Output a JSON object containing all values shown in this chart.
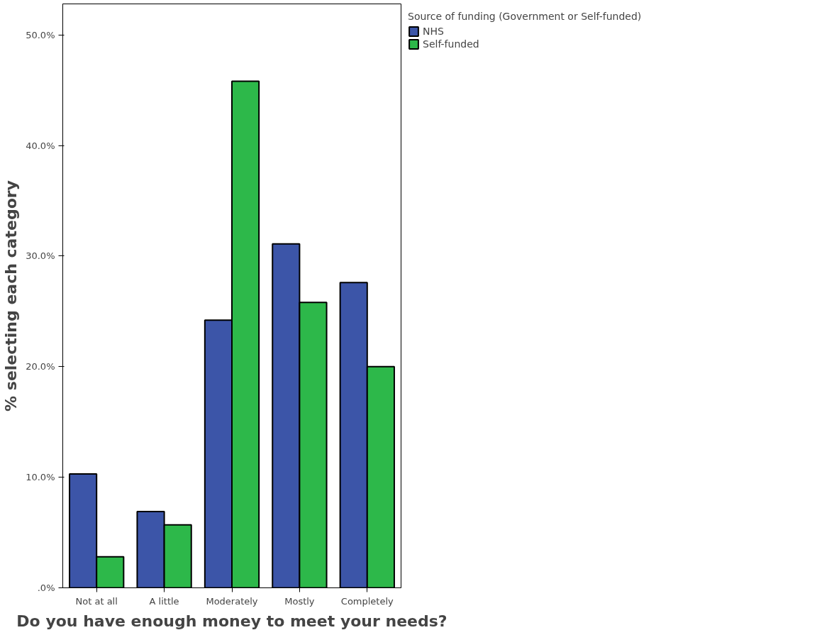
{
  "chart_data": {
    "type": "bar",
    "xlabel": "Do you have enough money to meet your needs?",
    "ylabel": "% selecting each category",
    "legend_title": "Source of funding (Government or Self-funded)",
    "categories": [
      "Not at all",
      "A little",
      "Moderately",
      "Mostly",
      "Completely"
    ],
    "series": [
      {
        "name": "NHS",
        "color": "#3c55a8",
        "values": [
          10.3,
          6.9,
          24.2,
          31.1,
          27.6
        ]
      },
      {
        "name": "Self-funded",
        "color": "#2db84a",
        "values": [
          2.8,
          5.7,
          45.8,
          25.8,
          20.0
        ]
      }
    ],
    "ylim": [
      0,
      52.8
    ],
    "yticks": [
      {
        "value": 0,
        "label": ".0%"
      },
      {
        "value": 10,
        "label": "10.0%"
      },
      {
        "value": 20,
        "label": "20.0%"
      },
      {
        "value": 30,
        "label": "30.0%"
      },
      {
        "value": 40,
        "label": "40.0%"
      },
      {
        "value": 50,
        "label": "50.0%"
      }
    ],
    "grid": false,
    "legend": "top right"
  }
}
